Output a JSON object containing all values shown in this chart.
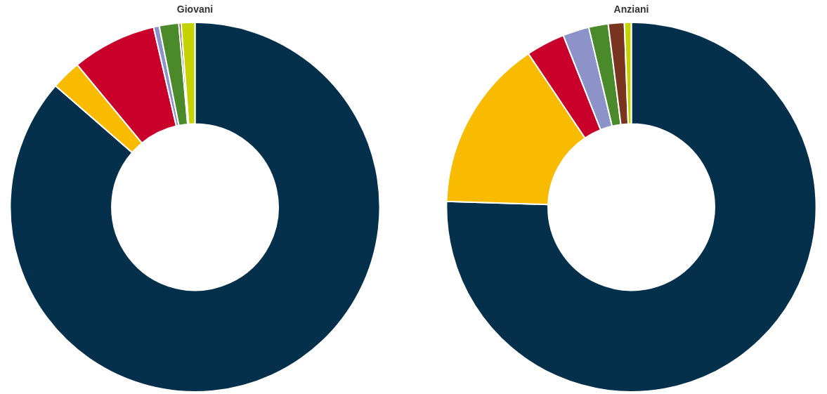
{
  "chart_data": [
    {
      "type": "donut",
      "title": "Giovani",
      "categories": [
        null,
        null,
        null,
        null,
        null,
        null,
        null
      ],
      "values": [
        86.4,
        2.6,
        7.4,
        0.5,
        1.7,
        0.2,
        1.2
      ],
      "colors": [
        "#05304b",
        "#f9bb00",
        "#c8002a",
        "#8d92c8",
        "#4a8a2a",
        "#7a3520",
        "#c5d400"
      ],
      "legend": false
    },
    {
      "type": "donut",
      "title": "Anziani",
      "categories": [
        null,
        null,
        null,
        null,
        null,
        null,
        null
      ],
      "values": [
        75.5,
        15.1,
        3.4,
        2.3,
        1.7,
        1.4,
        0.6
      ],
      "colors": [
        "#05304b",
        "#f9bb00",
        "#c8002a",
        "#8d92c8",
        "#4a8a2a",
        "#7a3520",
        "#c5d400"
      ],
      "legend": false
    }
  ]
}
